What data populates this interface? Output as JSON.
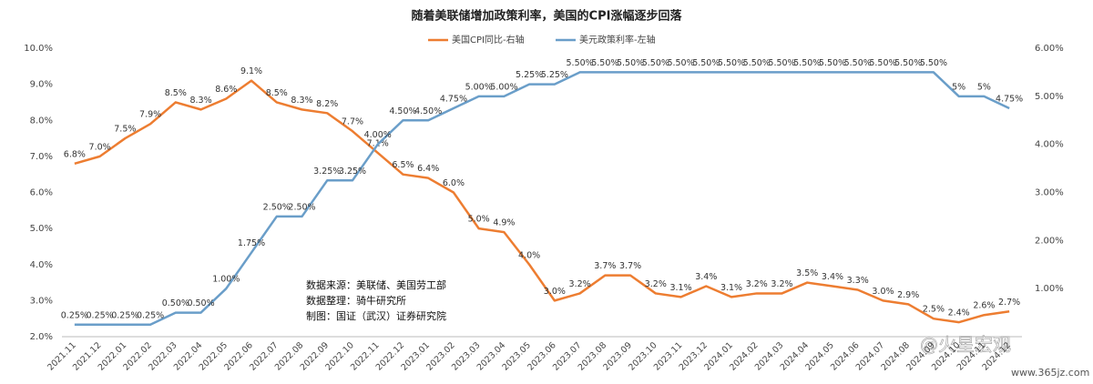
{
  "chart_data": {
    "type": "line",
    "title": "随着美联储增加政策利率，美国的CPI涨幅逐步回落",
    "categories": [
      "2021.11",
      "2021.12",
      "2022.01",
      "2022.02",
      "2022.03",
      "2022.04",
      "2022.05",
      "2022.06",
      "2022.07",
      "2022.08",
      "2022.09",
      "2022.10",
      "2022.11",
      "2022.12",
      "2023.01",
      "2023.02",
      "2023.03",
      "2023.04",
      "2023.05",
      "2023.06",
      "2023.07",
      "2023.08",
      "2023.09",
      "2023.10",
      "2023.11",
      "2023.12",
      "2024.01",
      "2024.02",
      "2024.03",
      "2024.04",
      "2024.05",
      "2024.06",
      "2024.07",
      "2024.08",
      "2024.09",
      "2024.10",
      "2024.11",
      "2024.12"
    ],
    "series": [
      {
        "name": "美国CPI同比-右轴",
        "color": "#ed7d31",
        "axis": "y",
        "values": [
          6.8,
          7.0,
          7.5,
          7.9,
          8.5,
          8.3,
          8.6,
          9.1,
          8.5,
          8.3,
          8.2,
          7.7,
          7.1,
          6.5,
          6.4,
          6.0,
          5.0,
          4.9,
          4.0,
          3.0,
          3.2,
          3.7,
          3.7,
          3.2,
          3.1,
          3.4,
          3.1,
          3.2,
          3.2,
          3.5,
          3.4,
          3.3,
          3.0,
          2.9,
          2.5,
          2.4,
          2.6,
          2.7
        ],
        "value_labels": [
          "6.8%",
          "7.0%",
          "7.5%",
          "7.9%",
          "8.5%",
          "8.3%",
          "8.6%",
          "9.1%",
          "8.5%",
          "8.3%",
          "8.2%",
          "7.7%",
          "7.1%",
          "6.5%",
          "6.4%",
          "6.0%",
          "5.0%",
          "4.9%",
          "4.0%",
          "3.0%",
          "3.2%",
          "3.7%",
          "3.7%",
          "3.2%",
          "3.1%",
          "3.4%",
          "3.1%",
          "3.2%",
          "3.2%",
          "3.5%",
          "3.4%",
          "3.3%",
          "3.0%",
          "2.9%",
          "2.5%",
          "2.4%",
          "2.6%",
          "2.7%"
        ]
      },
      {
        "name": "美元政策利率-左轴",
        "color": "#6a9ec9",
        "axis": "y2",
        "values": [
          0.25,
          0.25,
          0.25,
          0.25,
          0.5,
          0.5,
          1.0,
          1.75,
          2.5,
          2.5,
          3.25,
          3.25,
          4.0,
          4.5,
          4.5,
          4.75,
          5.0,
          5.0,
          5.25,
          5.25,
          5.5,
          5.5,
          5.5,
          5.5,
          5.5,
          5.5,
          5.5,
          5.5,
          5.5,
          5.5,
          5.5,
          5.5,
          5.5,
          5.5,
          5.5,
          5,
          5,
          4.75
        ],
        "value_labels": [
          "0.25%",
          "0.25%",
          "0.25%",
          "0.25%",
          "0.50%",
          "0.50%",
          "1.00%",
          "1.75%",
          "2.50%",
          "2.50%",
          "3.25%",
          "3.25%",
          "4.00%",
          "4.50%",
          "4.50%",
          "4.75%",
          "5.00%",
          "5.00%",
          "5.25%",
          "5.25%",
          "5.50%",
          "5.50%",
          "5.50%",
          "5.50%",
          "5.50%",
          "5.50%",
          "5.50%",
          "5.50%",
          "5.50%",
          "5.50%",
          "5.50%",
          "5.50%",
          "5.50%",
          "5.50%",
          "5.50%",
          "5%",
          "5%",
          "4.75%"
        ]
      }
    ],
    "ylim": [
      2,
      10
    ],
    "yticks": [
      {
        "value": 2,
        "label": "2.0%"
      },
      {
        "value": 3,
        "label": "3.0%"
      },
      {
        "value": 4,
        "label": "4.0%"
      },
      {
        "value": 5,
        "label": "5.0%"
      },
      {
        "value": 6,
        "label": "6.0%"
      },
      {
        "value": 7,
        "label": "7.0%"
      },
      {
        "value": 8,
        "label": "8.0%"
      },
      {
        "value": 9,
        "label": "9.0%"
      },
      {
        "value": 10,
        "label": "10.0%"
      }
    ],
    "y2lim": [
      0,
      6
    ],
    "y2ticks": [
      {
        "value": 1,
        "label": "1.00%"
      },
      {
        "value": 2,
        "label": "2.00%"
      },
      {
        "value": 3,
        "label": "3.00%"
      },
      {
        "value": 4,
        "label": "4.00%"
      },
      {
        "value": 5,
        "label": "5.00%"
      },
      {
        "value": 6,
        "label": "6.00%"
      }
    ],
    "annotations": [
      "数据来源：美联储、美国劳工部",
      "数据整理：骑牛研究所",
      "制图：国证（武汉）证券研究院"
    ],
    "watermark": [
      "@火星宏观",
      "www.365jz.com"
    ]
  }
}
